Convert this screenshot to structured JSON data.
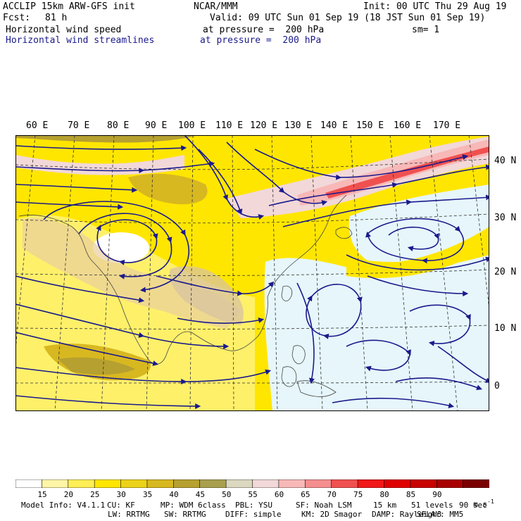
{
  "header": {
    "model_title": "ACCLIP 15km ARW-GFS init",
    "institution": "NCAR/MMM",
    "init": "Init: 00 UTC Thu 29 Aug 19",
    "fcst_label": "Fcst:",
    "fcst_value": "81 h",
    "valid": "Valid: 09 UTC Sun 01 Sep 19 (18 JST Sun 01 Sep 19)",
    "field1_name": "Horizontal wind speed",
    "field1_level": "at pressure =  200 hPa",
    "sm": "sm= 1",
    "field2_name": "Horizontal wind streamlines",
    "field2_level": "at pressure =  200 hPa"
  },
  "map": {
    "lon_labels": [
      "60 E",
      "70 E",
      "80 E",
      "90 E",
      "100 E",
      "110 E",
      "120 E",
      "130 E",
      "140 E",
      "150 E",
      "160 E",
      "170 E"
    ],
    "lat_labels": [
      "40 N",
      "30 N",
      "20 N",
      "10 N",
      "0"
    ]
  },
  "colorbar": {
    "levels": [
      "15",
      "20",
      "25",
      "30",
      "35",
      "40",
      "45",
      "50",
      "55",
      "60",
      "65",
      "70",
      "75",
      "80",
      "85",
      "90"
    ],
    "unit": "m s",
    "unit_exp": "-1",
    "colors": [
      "#ffffff",
      "#fff5a8",
      "#ffee55",
      "#ffe600",
      "#ecd21a",
      "#d8b820",
      "#b6a030",
      "#a8a04e",
      "#dcd8c0",
      "#f2d8d8",
      "#f8b8b8",
      "#f58e8e",
      "#f05050",
      "#f01818",
      "#e00000",
      "#c80000",
      "#a80000",
      "#7a0000"
    ]
  },
  "footer": {
    "line1": [
      "Model Info: V4.1.1",
      "CU: KF",
      "MP: WDM 6class",
      "PBL: YSU",
      "SF: Noah LSM",
      "15 km",
      "51 levels",
      "90 sec"
    ],
    "line2": [
      "LW: RRTMG",
      "SW: RRTMG",
      "DIFF: simple",
      "KM: 2D Smagor",
      "DAMP: Rayleigh3",
      "SFLAY: MM5"
    ]
  }
}
